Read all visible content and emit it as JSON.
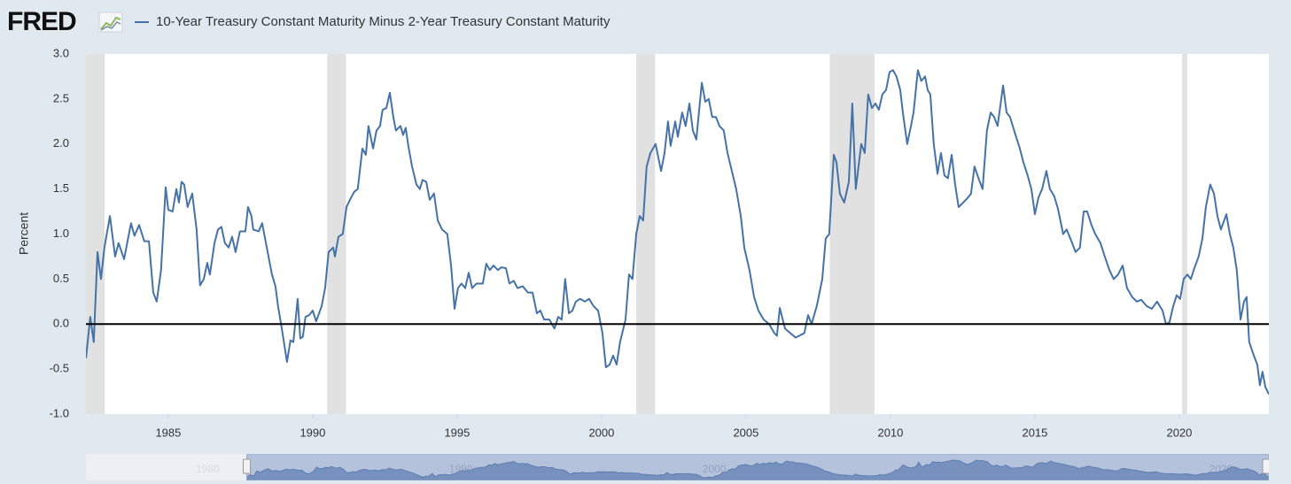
{
  "chart_data": {
    "type": "line",
    "logo": "FRED",
    "y_label": "Percent",
    "series": [
      {
        "name": "10-Year Treasury Constant Maturity Minus 2-Year Treasury Constant Maturity",
        "color": "#4572a7",
        "x": [
          1982.15,
          1982.3,
          1982.42,
          1982.55,
          1982.67,
          1982.79,
          1982.98,
          1983.16,
          1983.28,
          1983.47,
          1983.71,
          1983.83,
          1983.99,
          1984.17,
          1984.33,
          1984.48,
          1984.6,
          1984.75,
          1984.91,
          1985.0,
          1985.15,
          1985.28,
          1985.37,
          1985.46,
          1985.55,
          1985.67,
          1985.83,
          1985.98,
          1986.1,
          1986.23,
          1986.35,
          1986.44,
          1986.6,
          1986.72,
          1986.84,
          1986.96,
          1987.09,
          1987.21,
          1987.33,
          1987.48,
          1987.67,
          1987.76,
          1987.88,
          1987.94,
          1988.13,
          1988.25,
          1988.44,
          1988.59,
          1988.71,
          1988.8,
          1988.93,
          1989.11,
          1989.23,
          1989.33,
          1989.48,
          1989.57,
          1989.66,
          1989.75,
          1989.88,
          1990.0,
          1990.12,
          1990.31,
          1990.43,
          1990.55,
          1990.71,
          1990.77,
          1990.89,
          1991.04,
          1991.17,
          1991.32,
          1991.44,
          1991.56,
          1991.72,
          1991.84,
          1991.93,
          1992.09,
          1992.21,
          1992.33,
          1992.42,
          1992.55,
          1992.67,
          1992.79,
          1992.88,
          1993.04,
          1993.13,
          1993.22,
          1993.31,
          1993.44,
          1993.59,
          1993.71,
          1993.8,
          1993.93,
          1994.05,
          1994.2,
          1994.33,
          1994.48,
          1994.66,
          1994.79,
          1994.91,
          1995.03,
          1995.15,
          1995.28,
          1995.4,
          1995.52,
          1995.67,
          1995.89,
          1996.01,
          1996.13,
          1996.26,
          1996.41,
          1996.53,
          1996.69,
          1996.81,
          1996.96,
          1997.09,
          1997.27,
          1997.45,
          1997.61,
          1997.76,
          1997.88,
          1998.01,
          1998.19,
          1998.37,
          1998.5,
          1998.62,
          1998.74,
          1998.87,
          1998.99,
          1999.11,
          1999.26,
          1999.42,
          1999.57,
          1999.72,
          1999.88,
          2000.03,
          2000.15,
          2000.28,
          2000.4,
          2000.52,
          2000.64,
          2000.83,
          2000.95,
          2001.07,
          2001.2,
          2001.32,
          2001.44,
          2001.56,
          2001.69,
          2001.87,
          2002.06,
          2002.18,
          2002.3,
          2002.39,
          2002.55,
          2002.64,
          2002.79,
          2002.91,
          2003.04,
          2003.16,
          2003.28,
          2003.47,
          2003.59,
          2003.71,
          2003.83,
          2003.96,
          2004.08,
          2004.23,
          2004.36,
          2004.51,
          2004.66,
          2004.82,
          2004.94,
          2005.12,
          2005.28,
          2005.43,
          2005.61,
          2005.8,
          2005.98,
          2006.07,
          2006.17,
          2006.35,
          2006.53,
          2006.72,
          2006.9,
          2007.02,
          2007.15,
          2007.27,
          2007.45,
          2007.64,
          2007.76,
          2007.88,
          2008.04,
          2008.13,
          2008.25,
          2008.4,
          2008.56,
          2008.68,
          2008.8,
          2008.99,
          2009.11,
          2009.23,
          2009.36,
          2009.48,
          2009.6,
          2009.72,
          2009.85,
          2009.97,
          2010.09,
          2010.21,
          2010.34,
          2010.43,
          2010.58,
          2010.71,
          2010.8,
          2010.95,
          2011.07,
          2011.2,
          2011.29,
          2011.38,
          2011.5,
          2011.63,
          2011.75,
          2011.87,
          2011.99,
          2012.12,
          2012.24,
          2012.36,
          2012.52,
          2012.67,
          2012.79,
          2012.91,
          2013.07,
          2013.19,
          2013.34,
          2013.47,
          2013.59,
          2013.71,
          2013.9,
          2014.02,
          2014.14,
          2014.33,
          2014.48,
          2014.6,
          2014.75,
          2014.88,
          2015.0,
          2015.12,
          2015.25,
          2015.4,
          2015.52,
          2015.67,
          2015.8,
          2015.98,
          2016.1,
          2016.23,
          2016.41,
          2016.56,
          2016.69,
          2016.81,
          2016.96,
          2017.09,
          2017.27,
          2017.42,
          2017.58,
          2017.73,
          2017.88,
          2018.04,
          2018.19,
          2018.37,
          2018.53,
          2018.68,
          2018.87,
          2019.05,
          2019.23,
          2019.42,
          2019.54,
          2019.66,
          2019.79,
          2019.91,
          2020.03,
          2020.15,
          2020.28,
          2020.4,
          2020.52,
          2020.67,
          2020.8,
          2020.92,
          2021.07,
          2021.2,
          2021.32,
          2021.44,
          2021.63,
          2021.75,
          2021.87,
          2021.99,
          2022.12,
          2022.24,
          2022.33,
          2022.42,
          2022.58,
          2022.7,
          2022.79,
          2022.88,
          2022.98,
          2023.1
        ],
        "values": [
          -0.38,
          0.08,
          -0.2,
          0.8,
          0.5,
          0.85,
          1.2,
          0.75,
          0.9,
          0.72,
          1.12,
          0.98,
          1.1,
          0.92,
          0.92,
          0.35,
          0.25,
          0.6,
          1.52,
          1.27,
          1.25,
          1.5,
          1.35,
          1.58,
          1.55,
          1.3,
          1.45,
          1.05,
          0.43,
          0.5,
          0.68,
          0.55,
          0.9,
          1.05,
          1.08,
          0.9,
          0.85,
          0.97,
          0.8,
          1.03,
          1.03,
          1.3,
          1.2,
          1.05,
          1.03,
          1.12,
          0.8,
          0.55,
          0.42,
          0.2,
          -0.05,
          -0.42,
          -0.18,
          -0.2,
          0.28,
          -0.16,
          -0.14,
          0.08,
          0.1,
          0.15,
          0.03,
          0.2,
          0.4,
          0.8,
          0.85,
          0.75,
          0.97,
          1.0,
          1.3,
          1.4,
          1.47,
          1.5,
          1.95,
          1.88,
          2.2,
          1.95,
          2.15,
          2.2,
          2.38,
          2.4,
          2.57,
          2.3,
          2.15,
          2.2,
          2.1,
          2.18,
          1.98,
          1.75,
          1.55,
          1.5,
          1.6,
          1.58,
          1.38,
          1.45,
          1.15,
          1.05,
          1.0,
          0.65,
          0.17,
          0.4,
          0.45,
          0.4,
          0.57,
          0.4,
          0.45,
          0.45,
          0.67,
          0.6,
          0.65,
          0.6,
          0.63,
          0.62,
          0.45,
          0.48,
          0.4,
          0.42,
          0.35,
          0.35,
          0.12,
          0.15,
          0.05,
          0.05,
          -0.05,
          0.08,
          0.05,
          0.5,
          0.12,
          0.15,
          0.25,
          0.28,
          0.25,
          0.28,
          0.2,
          0.15,
          -0.1,
          -0.48,
          -0.45,
          -0.35,
          -0.45,
          -0.2,
          0.05,
          0.55,
          0.5,
          1.0,
          1.2,
          1.15,
          1.75,
          1.9,
          2.0,
          1.7,
          1.9,
          2.25,
          1.98,
          2.25,
          2.08,
          2.35,
          2.2,
          2.45,
          2.15,
          2.05,
          2.68,
          2.47,
          2.5,
          2.3,
          2.3,
          2.2,
          2.15,
          1.9,
          1.7,
          1.5,
          1.2,
          0.85,
          0.6,
          0.3,
          0.15,
          0.05,
          0.0,
          -0.1,
          -0.13,
          0.18,
          -0.05,
          -0.1,
          -0.15,
          -0.12,
          -0.1,
          0.1,
          0.0,
          0.2,
          0.5,
          0.95,
          1.0,
          1.88,
          1.8,
          1.45,
          1.35,
          1.58,
          2.45,
          1.5,
          2.0,
          1.9,
          2.55,
          2.4,
          2.45,
          2.38,
          2.55,
          2.6,
          2.8,
          2.82,
          2.75,
          2.6,
          2.35,
          2.0,
          2.2,
          2.35,
          2.82,
          2.7,
          2.75,
          2.6,
          2.55,
          2.0,
          1.67,
          1.9,
          1.65,
          1.62,
          1.88,
          1.55,
          1.3,
          1.35,
          1.4,
          1.45,
          1.75,
          1.6,
          1.5,
          2.15,
          2.35,
          2.3,
          2.2,
          2.65,
          2.35,
          2.3,
          2.1,
          1.95,
          1.8,
          1.65,
          1.5,
          1.22,
          1.4,
          1.5,
          1.7,
          1.5,
          1.42,
          1.28,
          1.0,
          1.05,
          0.95,
          0.8,
          0.85,
          1.25,
          1.25,
          1.1,
          1.0,
          0.9,
          0.75,
          0.6,
          0.5,
          0.55,
          0.65,
          0.4,
          0.3,
          0.25,
          0.27,
          0.2,
          0.17,
          0.25,
          0.15,
          0.0,
          0.02,
          0.2,
          0.32,
          0.28,
          0.5,
          0.55,
          0.5,
          0.62,
          0.75,
          0.95,
          1.3,
          1.55,
          1.45,
          1.2,
          1.05,
          1.22,
          1.0,
          0.85,
          0.6,
          0.05,
          0.25,
          0.3,
          -0.2,
          -0.35,
          -0.45,
          -0.68,
          -0.53,
          -0.7,
          -0.78
        ]
      }
    ],
    "recessions": [
      [
        1982.15,
        1982.8
      ],
      [
        1990.5,
        1991.15
      ],
      [
        2001.2,
        2001.85
      ],
      [
        2007.9,
        2009.45
      ],
      [
        2020.1,
        2020.27
      ]
    ],
    "recession_color": "#e1e1e1",
    "hline": 0,
    "xlim": [
      1982.15,
      2023.1
    ],
    "ylim": [
      -1,
      3
    ],
    "xticks": [
      1985,
      1990,
      1995,
      2000,
      2005,
      2010,
      2015,
      2020
    ],
    "yticks": [
      {
        "value": 3,
        "label": "3.0"
      },
      2.5,
      {
        "value": 2,
        "label": "2.0"
      },
      1.5,
      {
        "value": 1,
        "label": "1.0"
      },
      0.5,
      {
        "value": 0,
        "label": "0.0"
      },
      -0.5,
      {
        "value": -1,
        "label": "-1.0"
      }
    ],
    "grid": false,
    "navigator": {
      "xlim": [
        1975.8,
        2022.5
      ],
      "xticks": [
        1980,
        1990,
        2000,
        2010,
        2020
      ],
      "selection": [
        1982.15,
        2023.1
      ]
    }
  }
}
